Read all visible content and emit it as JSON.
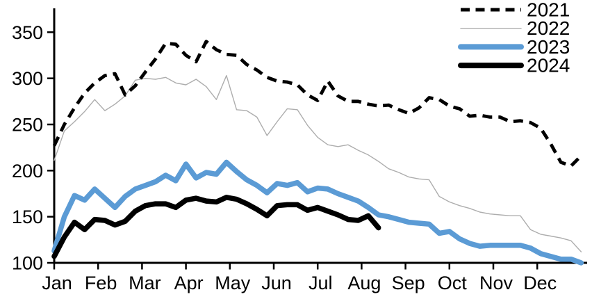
{
  "chart_data": {
    "type": "line",
    "title": "",
    "xlabel": "",
    "ylabel": "",
    "x_unit": "weekly (Jan–Dec)",
    "categories_months": [
      "Jan",
      "Feb",
      "Mar",
      "Apr",
      "May",
      "Jun",
      "Jul",
      "Aug",
      "Sep",
      "Oct",
      "Nov",
      "Dec"
    ],
    "y_ticks": [
      100,
      150,
      200,
      250,
      300,
      350
    ],
    "ylim": [
      100,
      375
    ],
    "grid": false,
    "legend_position": "top-right",
    "axis_color": "#000000",
    "background_color": "#ffffff",
    "series": [
      {
        "name": "2021",
        "color": "#000000",
        "style": "dashed",
        "line_width": 4.8,
        "values": [
          227,
          250,
          268,
          284,
          295,
          303,
          305,
          282,
          292,
          307,
          321,
          338,
          337,
          325,
          318,
          340,
          331,
          326,
          325,
          315,
          309,
          301,
          297,
          296,
          293,
          282,
          276,
          297,
          281,
          275,
          275,
          272,
          270,
          271,
          266,
          262,
          268,
          279,
          277,
          270,
          267,
          259,
          260,
          258,
          258,
          253,
          254,
          252,
          246,
          229,
          209,
          205,
          216
        ]
      },
      {
        "name": "2022",
        "color": "#adadad",
        "style": "solid",
        "line_width": 1.4,
        "values": [
          211,
          243,
          253,
          264,
          277,
          265,
          272,
          281,
          298,
          300,
          299,
          301,
          295,
          293,
          299,
          291,
          277,
          303,
          266,
          265,
          258,
          238,
          253,
          267,
          266,
          249,
          236,
          228,
          226,
          228,
          222,
          217,
          210,
          202,
          198,
          193,
          191,
          190,
          172,
          166,
          162,
          159,
          155,
          153,
          152,
          151,
          151,
          136,
          131,
          129,
          127,
          124,
          112
        ]
      },
      {
        "name": "2023",
        "color": "#5b9bd5",
        "style": "solid",
        "line_width": 7.5,
        "values": [
          113,
          150,
          173,
          168,
          180,
          170,
          160,
          172,
          180,
          184,
          188,
          195,
          189,
          207,
          192,
          198,
          196,
          209,
          199,
          190,
          184,
          176,
          186,
          184,
          187,
          177,
          181,
          180,
          175,
          171,
          167,
          160,
          152,
          150,
          147,
          144,
          143,
          142,
          132,
          134,
          126,
          121,
          118,
          119,
          119,
          119,
          119,
          116,
          110,
          107,
          104,
          104,
          100
        ]
      },
      {
        "name": "2024",
        "color": "#000000",
        "style": "solid",
        "line_width": 7.5,
        "values": [
          107,
          128,
          144,
          136,
          147,
          146,
          141,
          145,
          156,
          162,
          164,
          164,
          160,
          168,
          170,
          167,
          166,
          171,
          169,
          164,
          158,
          151,
          162,
          163,
          163,
          157,
          160,
          156,
          152,
          147,
          146,
          151,
          138
        ]
      }
    ]
  }
}
